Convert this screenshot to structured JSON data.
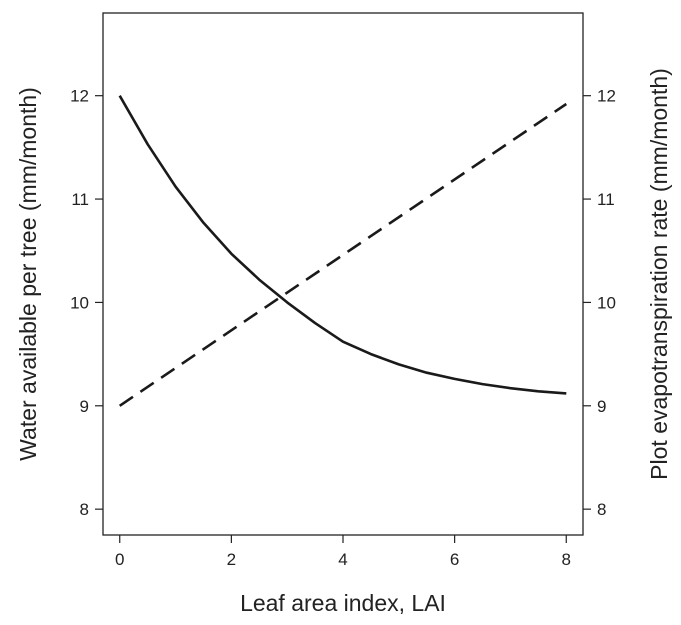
{
  "chart_data": {
    "type": "line",
    "title": "",
    "xlabel": "Leaf area index, LAI",
    "ylabel_left": "Water available per tree (mm/month)",
    "ylabel_right": "Plot evapotranspiration rate (mm/month)",
    "xlim": [
      -0.3,
      8.3
    ],
    "ylim": [
      7.75,
      12.8
    ],
    "x_ticks": [
      0,
      2,
      4,
      6,
      8
    ],
    "y_ticks_left": [
      8,
      9,
      10,
      11,
      12
    ],
    "y_ticks_right": [
      8,
      9,
      10,
      11,
      12
    ],
    "grid": false,
    "legend": "none",
    "series": [
      {
        "axis": "left",
        "line_style": "solid",
        "color": "#1a1a1a",
        "x": [
          0,
          0.5,
          1,
          1.5,
          2,
          2.5,
          3,
          3.5,
          4,
          4.5,
          5,
          5.5,
          6,
          6.5,
          7,
          7.5,
          8
        ],
        "y": [
          12.0,
          11.53,
          11.12,
          10.77,
          10.47,
          10.22,
          10.0,
          9.8,
          9.62,
          9.5,
          9.4,
          9.32,
          9.26,
          9.21,
          9.17,
          9.14,
          9.12
        ]
      },
      {
        "axis": "right",
        "line_style": "dashed",
        "color": "#1a1a1a",
        "x": [
          0,
          8
        ],
        "y": [
          9.0,
          11.92
        ]
      }
    ]
  }
}
